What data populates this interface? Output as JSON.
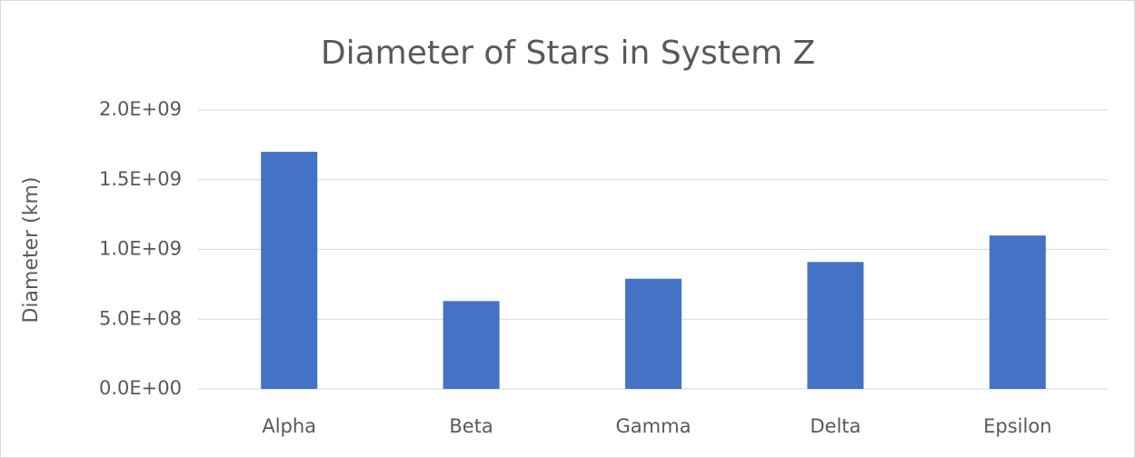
{
  "chart_data": {
    "type": "bar",
    "title": "Diameter of Stars in System Z",
    "y_label": "Diameter (km)",
    "categories": [
      "Alpha",
      "Beta",
      "Gamma",
      "Delta",
      "Epsilon"
    ],
    "values": [
      1700000000,
      630000000,
      790000000,
      910000000,
      1100000000
    ],
    "color": "#4472c4",
    "ylim": [
      0,
      2000000000
    ],
    "yticks": [
      {
        "value": 0,
        "label": "0.0E+00"
      },
      {
        "value": 500000000,
        "label": "5.0E+08"
      },
      {
        "value": 1000000000,
        "label": "1.0E+09"
      },
      {
        "value": 1500000000,
        "label": "1.5E+09"
      },
      {
        "value": 2000000000,
        "label": "2.0E+09"
      }
    ],
    "grid": true
  }
}
